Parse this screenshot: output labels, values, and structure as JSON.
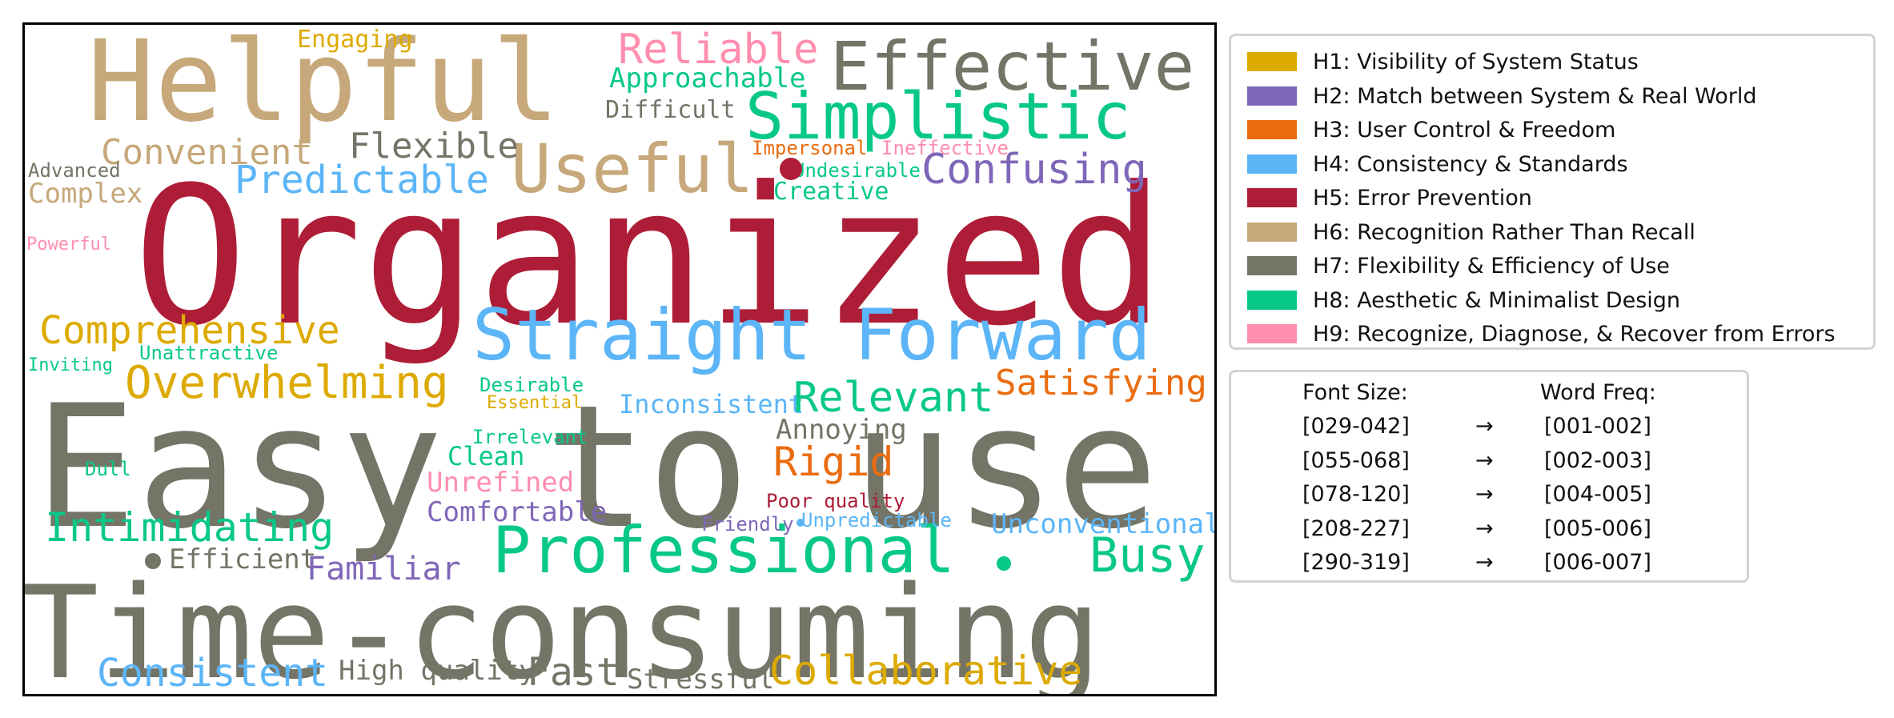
{
  "legend": [
    {
      "label": "H1: Visibility of System Status",
      "color": "#DDAA00"
    },
    {
      "label": "H2: Match between System & Real World",
      "color": "#7F67B8"
    },
    {
      "label": "H3: User Control & Freedom",
      "color": "#EA6C10"
    },
    {
      "label": "H4: Consistency & Standards",
      "color": "#5BB5F7"
    },
    {
      "label": "H5: Error Prevention",
      "color": "#AE1D37"
    },
    {
      "label": "H6: Recognition Rather Than Recall",
      "color": "#C6A87A"
    },
    {
      "label": "H7: Flexibility & Efficiency of Use",
      "color": "#747467"
    },
    {
      "label": "H8: Aesthetic & Minimalist Design",
      "color": "#08C888"
    },
    {
      "label": "H9: Recognize, Diagnose, & Recover from Errors",
      "color": "#FF8EAE"
    }
  ],
  "freq_table": {
    "col1_header": "Font Size:",
    "col2_header": "Word Freq:",
    "arrow": "→",
    "rows": [
      {
        "size": "[029-042]",
        "freq": "[001-002]"
      },
      {
        "size": "[055-068]",
        "freq": "[002-003]"
      },
      {
        "size": "[078-120]",
        "freq": "[004-005]"
      },
      {
        "size": "[208-227]",
        "freq": "[005-006]"
      },
      {
        "size": "[290-319]",
        "freq": "[006-007]"
      }
    ]
  },
  "words": [
    {
      "text": "Organized",
      "h": 5
    },
    {
      "text": "Easy to use",
      "h": 7
    },
    {
      "text": "Time-consuming",
      "h": 7
    },
    {
      "text": "Helpful",
      "h": 6
    },
    {
      "text": "Straight Forward",
      "h": 4
    },
    {
      "text": "Professional",
      "h": 8
    },
    {
      "text": "Effective",
      "h": 7
    },
    {
      "text": "Simplistic",
      "h": 8
    },
    {
      "text": "Useful",
      "h": 6
    },
    {
      "text": "Reliable",
      "h": 9
    },
    {
      "text": "Engaging",
      "h": 1
    },
    {
      "text": "Approachable",
      "h": 8
    },
    {
      "text": "Difficult",
      "h": 7
    },
    {
      "text": "Convenient",
      "h": 6
    },
    {
      "text": "Flexible",
      "h": 7
    },
    {
      "text": "Advanced",
      "h": 7
    },
    {
      "text": "Complex",
      "h": 6
    },
    {
      "text": "Predictable",
      "h": 4
    },
    {
      "text": "Impersonal",
      "h": 3
    },
    {
      "text": "Ineffective",
      "h": 9
    },
    {
      "text": "Undesirable",
      "h": 8
    },
    {
      "text": "Confusing",
      "h": 2
    },
    {
      "text": "Creative",
      "h": 8
    },
    {
      "text": "Powerful",
      "h": 9
    },
    {
      "text": "Comprehensive",
      "h": 1
    },
    {
      "text": "Inviting",
      "h": 8
    },
    {
      "text": "Unattractive",
      "h": 8
    },
    {
      "text": "Overwhelming",
      "h": 1
    },
    {
      "text": "Desirable",
      "h": 8
    },
    {
      "text": "Essential",
      "h": 1
    },
    {
      "text": "Inconsistent",
      "h": 4
    },
    {
      "text": "Relevant",
      "h": 8
    },
    {
      "text": "Satisfying",
      "h": 3
    },
    {
      "text": "Irrelevant",
      "h": 8
    },
    {
      "text": "Clean",
      "h": 8
    },
    {
      "text": "Annoying",
      "h": 7
    },
    {
      "text": "Rigid",
      "h": 3
    },
    {
      "text": "Dull",
      "h": 8
    },
    {
      "text": "Unrefined",
      "h": 9
    },
    {
      "text": "Comfortable",
      "h": 2
    },
    {
      "text": "Poor quality",
      "h": 5
    },
    {
      "text": "Intimidating",
      "h": 8
    },
    {
      "text": "Friendly",
      "h": 2
    },
    {
      "text": "Unpredictable",
      "h": 4
    },
    {
      "text": "Unconventional",
      "h": 4
    },
    {
      "text": "Efficient",
      "h": 7
    },
    {
      "text": "Familiar",
      "h": 2
    },
    {
      "text": "Busy",
      "h": 8
    },
    {
      "text": "Consistent",
      "h": 4
    },
    {
      "text": "High quality",
      "h": 7
    },
    {
      "text": "Fast",
      "h": 7
    },
    {
      "text": "Stressful",
      "h": 7
    },
    {
      "text": "Collaborative",
      "h": 1
    }
  ]
}
